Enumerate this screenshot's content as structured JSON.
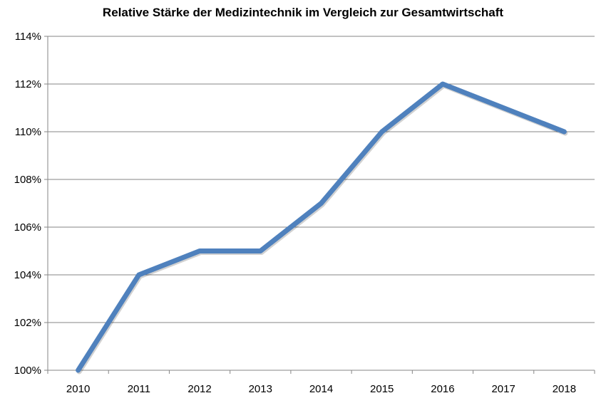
{
  "chart_data": {
    "type": "line",
    "title": "Relative Stärke der Medizintechnik im Vergleich zur Gesamtwirtschaft",
    "xlabel": "",
    "ylabel": "",
    "categories": [
      "2010",
      "2011",
      "2012",
      "2013",
      "2014",
      "2015",
      "2016",
      "2017",
      "2018"
    ],
    "series": [
      {
        "values": [
          100,
          104,
          105,
          105,
          107,
          110,
          112,
          111,
          110
        ]
      }
    ],
    "y_ticks": [
      "100%",
      "102%",
      "104%",
      "106%",
      "108%",
      "110%",
      "112%",
      "114%"
    ],
    "ylim": [
      100,
      114
    ],
    "y_step": 2,
    "grid": true,
    "legend": "none",
    "colors": {
      "line": "#4F81BD",
      "grid": "#868686",
      "axis": "#868686"
    }
  }
}
